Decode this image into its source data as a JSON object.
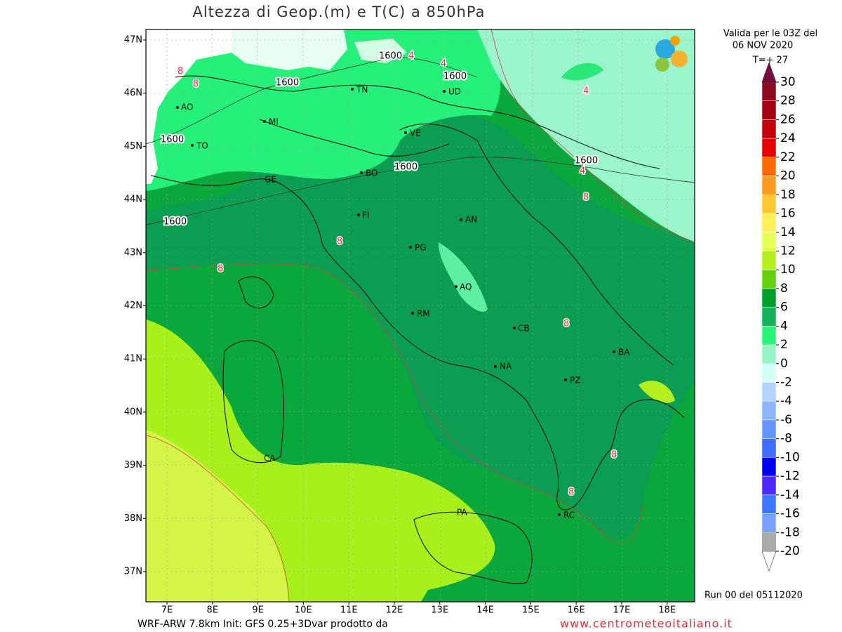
{
  "header": {
    "title": "Altezza di Geop.(m) e T(C) a 850hPa",
    "valid_lines": [
      "Valida per le 03Z del",
      "06 NOV 2020",
      "T=+ 27"
    ],
    "run": "Run 00 del 05112020"
  },
  "footer": {
    "model": "WRF-ARW 7.8km Init: GFS 0.25+3Dvar prodotto da",
    "site": "www.centrometeoitaliano.it"
  },
  "axes": {
    "lat_labels": [
      "47N",
      "46N",
      "45N",
      "44N",
      "43N",
      "42N",
      "41N",
      "40N",
      "39N",
      "38N",
      "37N"
    ],
    "lon_labels": [
      "7E",
      "8E",
      "9E",
      "10E",
      "11E",
      "12E",
      "13E",
      "14E",
      "15E",
      "16E",
      "17E",
      "18E"
    ]
  },
  "cities": [
    "AO",
    "TO",
    "MI",
    "TN",
    "UD",
    "VE",
    "GE",
    "BO",
    "FI",
    "AN",
    "PG",
    "AQ",
    "RM",
    "CB",
    "BA",
    "NA",
    "PZ",
    "CA",
    "PA",
    "RC"
  ],
  "contour_labels": [
    "1600",
    "4",
    "4",
    "1600",
    "1600",
    "8",
    "8",
    "1600",
    "1600",
    "1600",
    "4",
    "4",
    "8",
    "1600",
    "8",
    "8",
    "8",
    "8",
    "8"
  ],
  "legend": {
    "levels": [
      "30",
      "28",
      "26",
      "24",
      "22",
      "20",
      "18",
      "16",
      "14",
      "12",
      "10",
      "8",
      "6",
      "4",
      "2",
      "0",
      "-2",
      "-4",
      "-6",
      "-8",
      "-10",
      "-12",
      "-14",
      "-16",
      "-18",
      "-20"
    ],
    "colors": [
      "#8b0a1e",
      "#a50012",
      "#c8000a",
      "#e60000",
      "#ff6a00",
      "#ff9a1e",
      "#ffc832",
      "#ffee55",
      "#e6ff55",
      "#b4f01e",
      "#64d20a",
      "#00a02a",
      "#14b45a",
      "#28f578",
      "#96f5c8",
      "#d2fff5",
      "#b4d2ff",
      "#8cb4ff",
      "#6496ff",
      "#3c6eff",
      "#0000f0",
      "#5028ff",
      "#3c78ff",
      "#78a0ff",
      "#a0b4ff"
    ],
    "top_color": "#7a0a3c",
    "bottom_color": "#aaaaaa"
  }
}
